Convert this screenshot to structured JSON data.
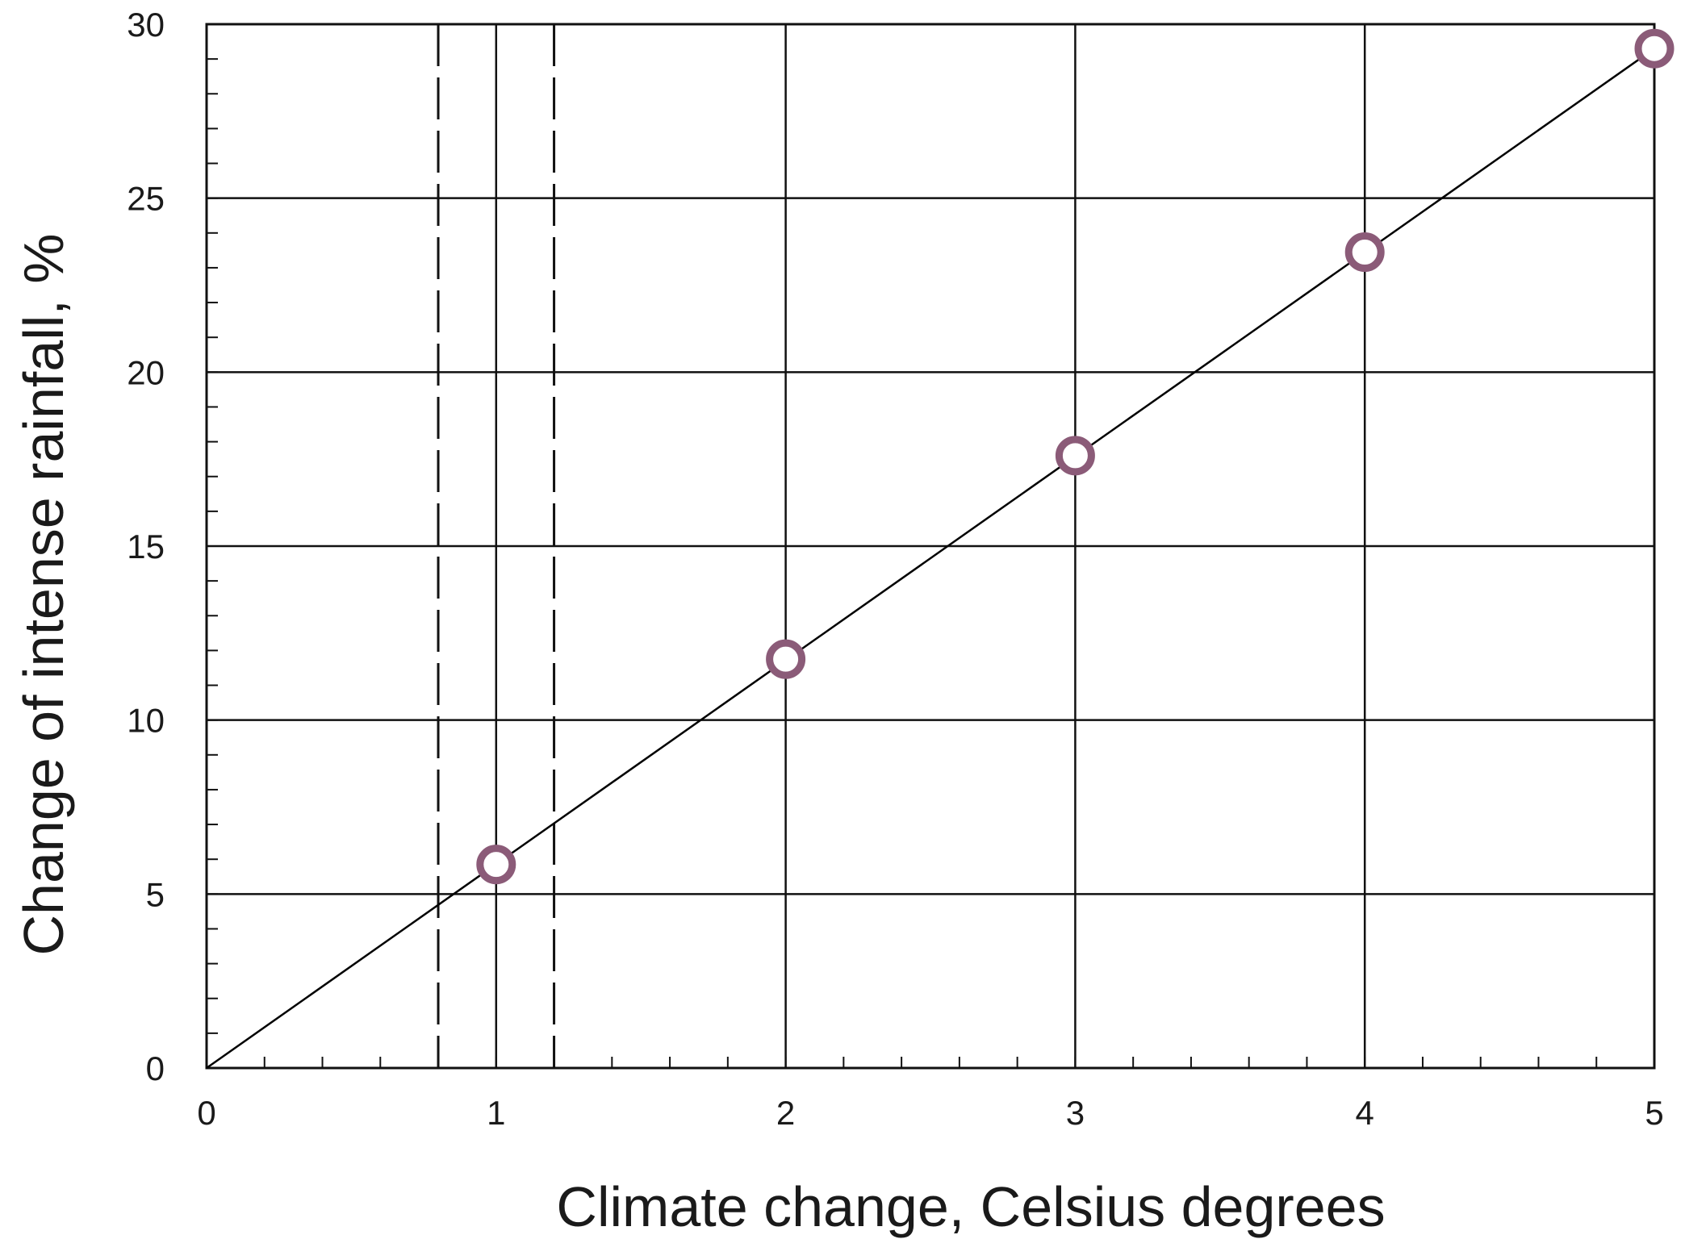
{
  "chart_data": {
    "type": "scatter",
    "title": "",
    "xlabel": "Climate change, Celsius degrees",
    "ylabel": "Change of intense rainfall, %",
    "xlim": [
      0,
      5
    ],
    "ylim": [
      0,
      30
    ],
    "x_ticks": [
      0,
      1,
      2,
      3,
      4,
      5
    ],
    "y_ticks": [
      0,
      5,
      10,
      15,
      20,
      25,
      30
    ],
    "x_tick_labels": [
      "0",
      "1",
      "2",
      "3",
      "4",
      "5"
    ],
    "y_tick_labels": [
      "0",
      "5",
      "10",
      "15",
      "20",
      "25",
      "30"
    ],
    "grid": true,
    "series": [
      {
        "x": [
          1,
          2,
          3,
          4,
          5
        ],
        "y": [
          5.85,
          11.75,
          17.6,
          23.45,
          29.3
        ],
        "marker": "open-circle",
        "color": "#8b5b78"
      }
    ],
    "fit_line": {
      "x": [
        0,
        5
      ],
      "y": [
        0,
        29.3
      ],
      "color": "#000000"
    },
    "reference_lines": [
      {
        "x": 0.8,
        "style": "dashed"
      },
      {
        "x": 1.2,
        "style": "dashed"
      }
    ]
  }
}
